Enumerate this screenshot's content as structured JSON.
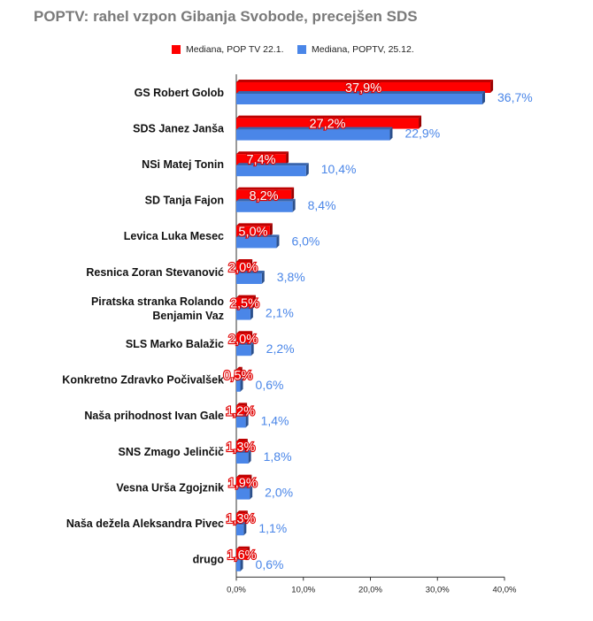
{
  "chart_data": {
    "type": "bar",
    "orientation": "horizontal",
    "title": "POPTV: rahel vzpon Gibanja Svobode, precejšen SDS",
    "categories": [
      [
        "GS Robert Golob"
      ],
      [
        "SDS Janez Janša"
      ],
      [
        "NSi Matej Tonin"
      ],
      [
        "SD Tanja Fajon"
      ],
      [
        "Levica Luka Mesec"
      ],
      [
        "Resnica Zoran Stevanović"
      ],
      [
        "Piratska stranka Rolando",
        "Benjamin Vaz"
      ],
      [
        "SLS Marko Balažic"
      ],
      [
        "Konkretno Zdravko Počivalšek"
      ],
      [
        "Naša prihodnost Ivan Gale"
      ],
      [
        "SNS Zmago Jelinčič"
      ],
      [
        "Vesna Urša Zgojznik"
      ],
      [
        "Naša dežela Aleksandra Pivec"
      ],
      [
        "drugo"
      ]
    ],
    "series": [
      {
        "name": "Mediana, POP TV 22.1.",
        "color": "#ff0000",
        "values": [
          37.9,
          27.2,
          7.4,
          8.2,
          5.0,
          2.0,
          2.5,
          2.0,
          0.5,
          1.2,
          1.3,
          1.9,
          1.3,
          1.6
        ],
        "labels": [
          "37,9%",
          "27,2%",
          "7,4%",
          "8,2%",
          "5,0%",
          "2,0%",
          "2,5%",
          "2,0%",
          "0,5%",
          "1,2%",
          "1,3%",
          "1,9%",
          "1,3%",
          "1,6%"
        ]
      },
      {
        "name": "Mediana, POPTV, 25.12.",
        "color": "#4a86e8",
        "values": [
          36.7,
          22.9,
          10.4,
          8.4,
          6.0,
          3.8,
          2.1,
          2.2,
          0.6,
          1.4,
          1.8,
          2.0,
          1.1,
          0.6
        ],
        "labels": [
          "36,7%",
          "22,9%",
          "10,4%",
          "8,4%",
          "6,0%",
          "3,8%",
          "2,1%",
          "2,2%",
          "0,6%",
          "1,4%",
          "1,8%",
          "2,0%",
          "1,1%",
          "0,6%"
        ]
      }
    ],
    "x_ticks": [
      0,
      10,
      20,
      30,
      40
    ],
    "x_tick_labels": [
      "0,0%",
      "10,0%",
      "20,0%",
      "30,0%",
      "40,0%"
    ],
    "xlim": [
      0,
      40
    ],
    "legend_position": "top",
    "grid": false
  }
}
